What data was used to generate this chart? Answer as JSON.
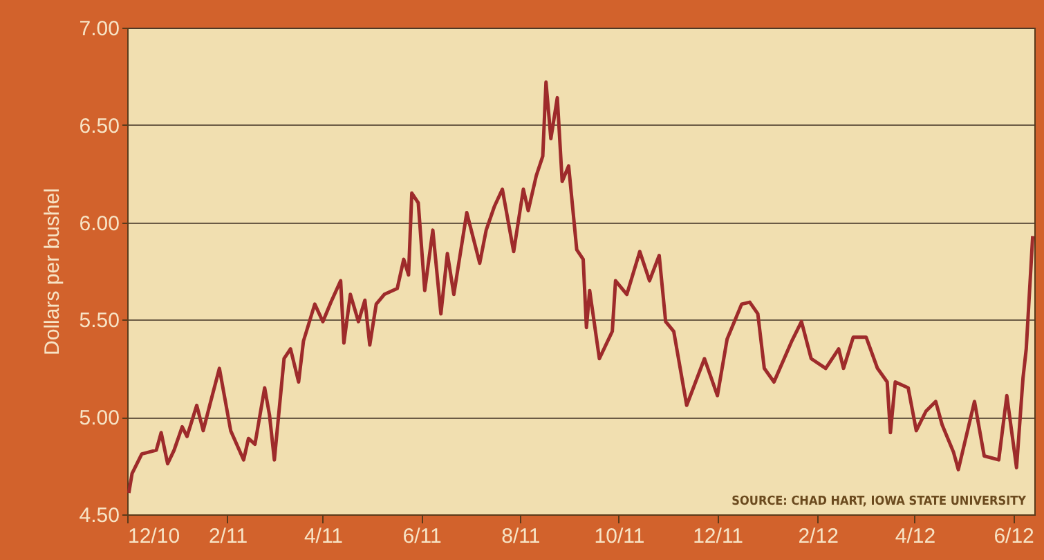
{
  "chart_data": {
    "type": "line",
    "ylabel": "Dollars per bushel",
    "color": "#9e2b2b",
    "grid": "y",
    "annotations": [
      "SOURCE: CHAD HART, IOWA STATE UNIVERSITY"
    ],
    "xlim": [
      "2010-12-01",
      "2012-06-14"
    ],
    "xticks": [
      {
        "value": "2010-12-01",
        "label": "12/10"
      },
      {
        "value": "2011-02-01",
        "label": "2/11"
      },
      {
        "value": "2011-04-01",
        "label": "4/11"
      },
      {
        "value": "2011-06-01",
        "label": "6/11"
      },
      {
        "value": "2011-08-01",
        "label": "8/11"
      },
      {
        "value": "2011-10-01",
        "label": "10/11"
      },
      {
        "value": "2011-12-01",
        "label": "12/11"
      },
      {
        "value": "2012-02-01",
        "label": "2/12"
      },
      {
        "value": "2012-04-01",
        "label": "4/12"
      },
      {
        "value": "2012-06-01",
        "label": "6/12"
      }
    ],
    "ylim": [
      4.5,
      7.0
    ],
    "yticks": [
      {
        "value": 4.5,
        "label": "4.50"
      },
      {
        "value": 5.0,
        "label": "5.00"
      },
      {
        "value": 5.5,
        "label": "5.50"
      },
      {
        "value": 6.0,
        "label": "6.00"
      },
      {
        "value": 6.5,
        "label": "6.50"
      },
      {
        "value": 7.0,
        "label": "7.00"
      }
    ],
    "x": [
      "2010-12-02",
      "2010-12-04",
      "2010-12-10",
      "2010-12-19",
      "2010-12-22",
      "2010-12-26",
      "2010-12-30",
      "2011-01-04",
      "2011-01-07",
      "2011-01-13",
      "2011-01-17",
      "2011-01-21",
      "2011-01-27",
      "2011-02-03",
      "2011-02-11",
      "2011-02-14",
      "2011-02-18",
      "2011-02-24",
      "2011-02-27",
      "2011-03-02",
      "2011-03-08",
      "2011-03-12",
      "2011-03-17",
      "2011-03-20",
      "2011-03-27",
      "2011-04-01",
      "2011-04-06",
      "2011-04-12",
      "2011-04-14",
      "2011-04-18",
      "2011-04-23",
      "2011-04-27",
      "2011-04-30",
      "2011-05-04",
      "2011-05-09",
      "2011-05-17",
      "2011-05-21",
      "2011-05-24",
      "2011-05-26",
      "2011-05-30",
      "2011-06-03",
      "2011-06-08",
      "2011-06-13",
      "2011-06-17",
      "2011-06-21",
      "2011-06-29",
      "2011-07-07",
      "2011-07-11",
      "2011-07-16",
      "2011-07-21",
      "2011-07-28",
      "2011-08-03",
      "2011-08-06",
      "2011-08-11",
      "2011-08-15",
      "2011-08-17",
      "2011-08-20",
      "2011-08-24",
      "2011-08-27",
      "2011-08-31",
      "2011-09-05",
      "2011-09-09",
      "2011-09-11",
      "2011-09-13",
      "2011-09-19",
      "2011-09-27",
      "2011-09-29",
      "2011-10-06",
      "2011-10-14",
      "2011-10-20",
      "2011-10-26",
      "2011-10-30",
      "2011-11-04",
      "2011-11-12",
      "2011-11-23",
      "2011-12-01",
      "2011-12-07",
      "2011-12-16",
      "2011-12-21",
      "2011-12-26",
      "2011-12-30",
      "2012-01-05",
      "2012-01-16",
      "2012-01-22",
      "2012-01-28",
      "2012-02-06",
      "2012-02-14",
      "2012-02-17",
      "2012-02-23",
      "2012-03-02",
      "2012-03-09",
      "2012-03-15",
      "2012-03-17",
      "2012-03-20",
      "2012-03-28",
      "2012-04-02",
      "2012-04-08",
      "2012-04-14",
      "2012-04-18",
      "2012-04-25",
      "2012-04-28",
      "2012-05-04",
      "2012-05-08",
      "2012-05-14",
      "2012-05-23",
      "2012-05-28",
      "2012-06-03",
      "2012-06-07",
      "2012-06-09",
      "2012-06-13"
    ],
    "values": [
      4.61,
      4.71,
      4.81,
      4.83,
      4.92,
      4.76,
      4.83,
      4.95,
      4.9,
      5.06,
      4.93,
      5.06,
      5.25,
      4.93,
      4.78,
      4.89,
      4.86,
      5.15,
      5.01,
      4.78,
      5.3,
      5.35,
      5.18,
      5.39,
      5.58,
      5.49,
      5.59,
      5.7,
      5.38,
      5.63,
      5.49,
      5.6,
      5.37,
      5.58,
      5.63,
      5.66,
      5.81,
      5.73,
      6.15,
      6.1,
      5.65,
      5.96,
      5.53,
      5.84,
      5.63,
      6.05,
      5.79,
      5.96,
      6.08,
      6.17,
      5.85,
      6.17,
      6.06,
      6.24,
      6.34,
      6.72,
      6.43,
      6.64,
      6.21,
      6.29,
      5.86,
      5.81,
      5.46,
      5.65,
      5.3,
      5.44,
      5.7,
      5.63,
      5.85,
      5.7,
      5.83,
      5.49,
      5.44,
      5.06,
      5.3,
      5.11,
      5.4,
      5.58,
      5.59,
      5.53,
      5.25,
      5.18,
      5.39,
      5.49,
      5.3,
      5.25,
      5.35,
      5.25,
      5.41,
      5.41,
      5.25,
      5.18,
      4.92,
      5.18,
      5.15,
      4.93,
      5.03,
      5.08,
      4.96,
      4.82,
      4.73,
      4.94,
      5.08,
      4.8,
      4.78,
      5.11,
      4.74,
      5.2,
      5.35,
      5.93
    ]
  }
}
